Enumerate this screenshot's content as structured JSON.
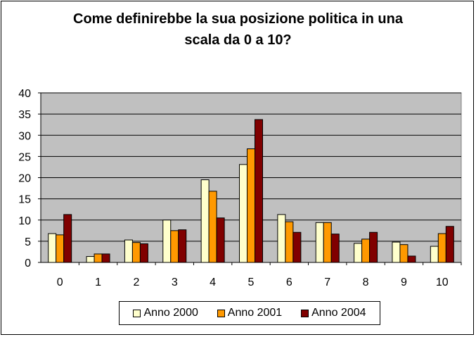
{
  "chart_data": {
    "type": "bar",
    "title": "Come definirebbe la sua posizione politica in una\nscala da 0 a 10?",
    "categories": [
      "0",
      "1",
      "2",
      "3",
      "4",
      "5",
      "6",
      "7",
      "8",
      "9",
      "10"
    ],
    "series": [
      {
        "name": "Anno 2000",
        "color": "#FFFFCC",
        "values": [
          6.8,
          1.4,
          5.3,
          10.0,
          19.5,
          23.1,
          11.3,
          9.4,
          4.5,
          4.8,
          3.8
        ]
      },
      {
        "name": "Anno 2001",
        "color": "#FF9900",
        "values": [
          6.5,
          2.0,
          4.7,
          7.5,
          16.8,
          26.8,
          9.6,
          9.4,
          5.5,
          4.2,
          6.8
        ]
      },
      {
        "name": "Anno 2004",
        "color": "#800000",
        "values": [
          11.3,
          2.0,
          4.4,
          7.7,
          10.5,
          33.7,
          7.1,
          6.7,
          7.1,
          1.5,
          8.5
        ]
      }
    ],
    "ylim": [
      0,
      40
    ],
    "yticks": [
      0,
      5,
      10,
      15,
      20,
      25,
      30,
      35,
      40
    ],
    "xlabel": "",
    "ylabel": "",
    "grid": true,
    "plot_background": "#C0C0C0",
    "legend_position": "bottom"
  }
}
